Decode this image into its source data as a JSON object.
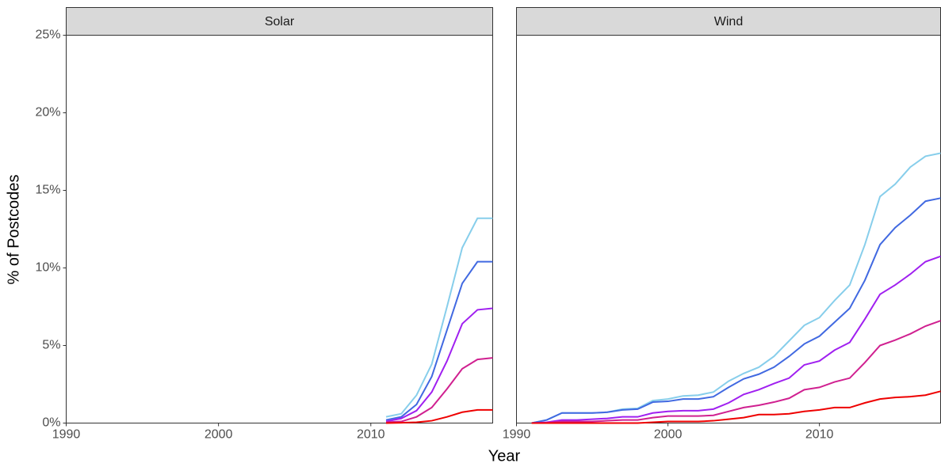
{
  "chart_data": {
    "type": "line",
    "x_label": "Year",
    "y_label": "% of Postcodes",
    "xlim": [
      1990,
      2018
    ],
    "xticks": [
      1990,
      2000,
      2010
    ],
    "ylim": [
      0,
      25
    ],
    "yticks": [
      {
        "value": 0,
        "label": "0%"
      },
      {
        "value": 5,
        "label": "5%"
      },
      {
        "value": 10,
        "label": "10%"
      },
      {
        "value": 15,
        "label": "15%"
      },
      {
        "value": 20,
        "label": "20%"
      },
      {
        "value": 25,
        "label": "25%"
      }
    ],
    "grid": false,
    "facets": [
      {
        "title": "Solar",
        "x": [
          2011,
          2012,
          2013,
          2014,
          2015,
          2016,
          2017,
          2018
        ],
        "series": [
          {
            "color": "#87ceeb",
            "values": [
              0.4,
              0.6,
              1.8,
              3.8,
              7.5,
              11.3,
              13.2,
              13.2
            ]
          },
          {
            "color": "#4169e1",
            "values": [
              0.2,
              0.4,
              1.2,
              3.0,
              6.0,
              9.0,
              10.4,
              10.4
            ]
          },
          {
            "color": "#a020f0",
            "values": [
              0.1,
              0.3,
              0.8,
              2.0,
              4.0,
              6.4,
              7.3,
              7.4
            ]
          },
          {
            "color": "#d02090",
            "values": [
              0.05,
              0.1,
              0.4,
              1.0,
              2.2,
              3.5,
              4.1,
              4.2
            ]
          },
          {
            "color": "#ee0000",
            "values": [
              0.0,
              0.02,
              0.05,
              0.15,
              0.4,
              0.7,
              0.85,
              0.85
            ]
          }
        ]
      },
      {
        "title": "Wind",
        "x": [
          1991,
          1992,
          1993,
          1994,
          1995,
          1996,
          1997,
          1998,
          1999,
          2000,
          2001,
          2002,
          2003,
          2004,
          2005,
          2006,
          2007,
          2008,
          2009,
          2010,
          2011,
          2012,
          2013,
          2014,
          2015,
          2016,
          2017,
          2018
        ],
        "series": [
          {
            "color": "#87ceeb",
            "values": [
              0,
              0.2,
              0.65,
              0.65,
              0.65,
              0.7,
              0.9,
              0.95,
              1.45,
              1.55,
              1.75,
              1.8,
              2.0,
              2.7,
              3.2,
              3.6,
              4.3,
              5.3,
              6.3,
              6.8,
              7.9,
              8.9,
              11.5,
              14.6,
              15.4,
              16.5,
              17.2,
              17.4
            ]
          },
          {
            "color": "#4169e1",
            "values": [
              0,
              0.2,
              0.65,
              0.65,
              0.65,
              0.7,
              0.85,
              0.9,
              1.35,
              1.4,
              1.55,
              1.55,
              1.7,
              2.3,
              2.85,
              3.15,
              3.6,
              4.3,
              5.1,
              5.6,
              6.5,
              7.4,
              9.2,
              11.5,
              12.6,
              13.4,
              14.3,
              14.5
            ]
          },
          {
            "color": "#a020f0",
            "values": [
              0,
              0.05,
              0.2,
              0.2,
              0.25,
              0.3,
              0.4,
              0.4,
              0.65,
              0.75,
              0.8,
              0.8,
              0.9,
              1.3,
              1.85,
              2.15,
              2.55,
              2.9,
              3.75,
              4.0,
              4.7,
              5.2,
              6.7,
              8.3,
              8.9,
              9.6,
              10.4,
              10.75
            ]
          },
          {
            "color": "#d02090",
            "values": [
              0,
              0.02,
              0.1,
              0.1,
              0.1,
              0.15,
              0.2,
              0.2,
              0.35,
              0.45,
              0.45,
              0.45,
              0.5,
              0.75,
              1.0,
              1.15,
              1.35,
              1.6,
              2.15,
              2.3,
              2.65,
              2.9,
              3.9,
              5.0,
              5.35,
              5.75,
              6.25,
              6.6
            ]
          },
          {
            "color": "#ee0000",
            "values": [
              0,
              0,
              0,
              0,
              0,
              0,
              0,
              0,
              0.05,
              0.1,
              0.1,
              0.1,
              0.15,
              0.25,
              0.35,
              0.55,
              0.55,
              0.6,
              0.75,
              0.85,
              1.0,
              1.0,
              1.3,
              1.55,
              1.65,
              1.7,
              1.8,
              2.05
            ]
          }
        ]
      }
    ]
  }
}
